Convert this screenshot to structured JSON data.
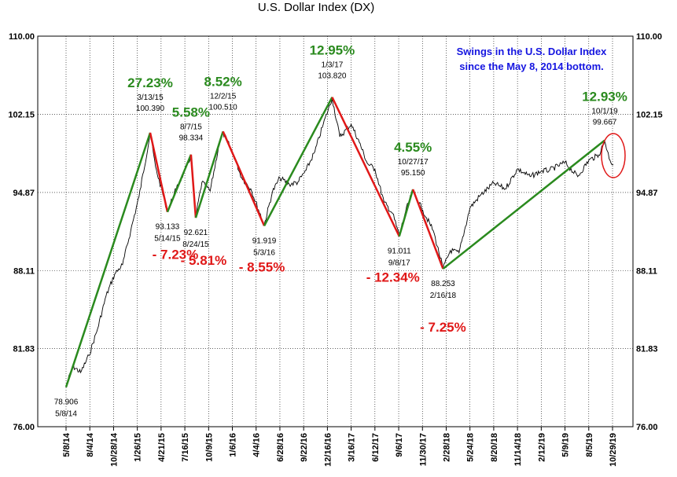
{
  "chart_data": {
    "type": "line",
    "title": "U.S. Dollar Index (DX)",
    "xlabel": "",
    "ylabel": "",
    "ylim": [
      76.0,
      110.0
    ],
    "y_ticks": [
      "110.00",
      "102.15",
      "94.87",
      "88.11",
      "81.83",
      "76.00"
    ],
    "y_tick_values": [
      110.0,
      102.15,
      94.87,
      88.11,
      81.83,
      76.0
    ],
    "x_ticks": [
      "5/8/14",
      "8/4/14",
      "10/28/14",
      "1/26/15",
      "4/21/15",
      "7/16/15",
      "10/9/15",
      "1/6/16",
      "4/4/16",
      "6/28/16",
      "9/22/16",
      "12/16/16",
      "3/16/17",
      "6/12/17",
      "9/6/17",
      "11/30/17",
      "2/28/18",
      "5/24/18",
      "8/20/18",
      "11/14/18",
      "2/12/19",
      "5/9/19",
      "8/5/19",
      "10/29/19"
    ],
    "x_tick_dates": [
      "2014-05-08",
      "2014-08-04",
      "2014-10-28",
      "2015-01-26",
      "2015-04-21",
      "2015-07-16",
      "2015-10-09",
      "2016-01-06",
      "2016-04-04",
      "2016-06-28",
      "2016-09-22",
      "2016-12-16",
      "2017-03-16",
      "2017-06-12",
      "2017-09-06",
      "2017-11-30",
      "2018-02-28",
      "2018-05-24",
      "2018-08-20",
      "2018-11-14",
      "2019-02-12",
      "2019-05-09",
      "2019-08-05",
      "2019-10-29"
    ],
    "grid": true,
    "annotation": {
      "line1": "Swings in the U.S. Dollar Index",
      "line2": "since the May 8, 2014 bottom."
    },
    "pivots": [
      {
        "date": "2014-05-08",
        "value": 78.906,
        "value_label": "78.906",
        "date_label": "5/8/14",
        "kind": "low"
      },
      {
        "date": "2015-03-13",
        "value": 100.39,
        "value_label": "100.390",
        "date_label": "3/13/15",
        "kind": "high",
        "change": "27.23%"
      },
      {
        "date": "2015-05-14",
        "value": 93.133,
        "value_label": "93.133",
        "date_label": "5/14/15",
        "kind": "low",
        "change": "- 7.23%"
      },
      {
        "date": "2015-08-07",
        "value": 98.334,
        "value_label": "98.334",
        "date_label": "8/7/15",
        "kind": "high",
        "change": "5.58%"
      },
      {
        "date": "2015-08-24",
        "value": 92.621,
        "value_label": "92.621",
        "date_label": "8/24/15",
        "kind": "low",
        "change": "- 5.81%"
      },
      {
        "date": "2015-12-02",
        "value": 100.51,
        "value_label": "100.510",
        "date_label": "12/2/15",
        "kind": "high",
        "change": "8.52%"
      },
      {
        "date": "2016-05-03",
        "value": 91.919,
        "value_label": "91.919",
        "date_label": "5/3/16",
        "kind": "low",
        "change": "- 8.55%"
      },
      {
        "date": "2017-01-03",
        "value": 103.82,
        "value_label": "103.820",
        "date_label": "1/3/17",
        "kind": "high",
        "change": "12.95%"
      },
      {
        "date": "2017-09-08",
        "value": 91.011,
        "value_label": "91.011",
        "date_label": "9/8/17",
        "kind": "low",
        "change": "- 12.34%"
      },
      {
        "date": "2017-10-27",
        "value": 95.15,
        "value_label": "95.150",
        "date_label": "10/27/17",
        "kind": "high",
        "change": "4.55%"
      },
      {
        "date": "2018-02-16",
        "value": 88.253,
        "value_label": "88.253",
        "date_label": "2/16/18",
        "kind": "low",
        "change": "- 7.25%"
      },
      {
        "date": "2019-10-01",
        "value": 99.667,
        "value_label": "99.667",
        "date_label": "10/1/19",
        "kind": "high",
        "change": "12.93%"
      }
    ],
    "series": [
      {
        "values_note": "daily closes (approximate, read from chart)",
        "x": [
          "2014-05-08",
          "2014-06-01",
          "2014-07-01",
          "2014-08-01",
          "2014-09-01",
          "2014-10-01",
          "2014-11-01",
          "2014-12-01",
          "2015-01-01",
          "2015-02-01",
          "2015-03-13",
          "2015-04-01",
          "2015-05-14",
          "2015-06-15",
          "2015-07-15",
          "2015-08-07",
          "2015-08-24",
          "2015-09-15",
          "2015-10-15",
          "2015-11-15",
          "2015-12-02",
          "2016-01-06",
          "2016-02-10",
          "2016-03-15",
          "2016-05-03",
          "2016-06-01",
          "2016-06-28",
          "2016-08-01",
          "2016-09-01",
          "2016-10-01",
          "2016-11-01",
          "2016-12-01",
          "2017-01-03",
          "2017-02-01",
          "2017-03-16",
          "2017-04-15",
          "2017-05-15",
          "2017-06-12",
          "2017-07-15",
          "2017-08-15",
          "2017-09-08",
          "2017-10-01",
          "2017-10-27",
          "2017-12-01",
          "2018-01-10",
          "2018-02-16",
          "2018-03-15",
          "2018-04-15",
          "2018-05-24",
          "2018-07-01",
          "2018-08-20",
          "2018-10-01",
          "2018-11-14",
          "2019-01-01",
          "2019-02-12",
          "2019-03-15",
          "2019-05-09",
          "2019-06-25",
          "2019-08-05",
          "2019-09-10",
          "2019-10-01",
          "2019-10-20",
          "2019-11-01"
        ],
        "y": [
          78.9,
          80.5,
          80.0,
          81.3,
          83.4,
          86.0,
          87.8,
          88.6,
          91.5,
          94.5,
          100.3,
          97.2,
          93.2,
          95.2,
          96.8,
          98.2,
          92.7,
          95.8,
          95.0,
          99.0,
          100.4,
          98.6,
          96.2,
          95.2,
          92.0,
          94.9,
          96.2,
          95.6,
          95.8,
          96.9,
          98.6,
          101.2,
          103.7,
          100.0,
          101.2,
          99.5,
          97.5,
          97.0,
          94.0,
          93.0,
          91.1,
          93.2,
          95.0,
          93.3,
          91.5,
          88.3,
          89.8,
          89.6,
          93.5,
          94.6,
          95.7,
          95.2,
          97.0,
          96.3,
          96.8,
          96.9,
          97.6,
          96.3,
          97.8,
          98.3,
          99.6,
          97.8,
          97.4
        ]
      }
    ]
  }
}
